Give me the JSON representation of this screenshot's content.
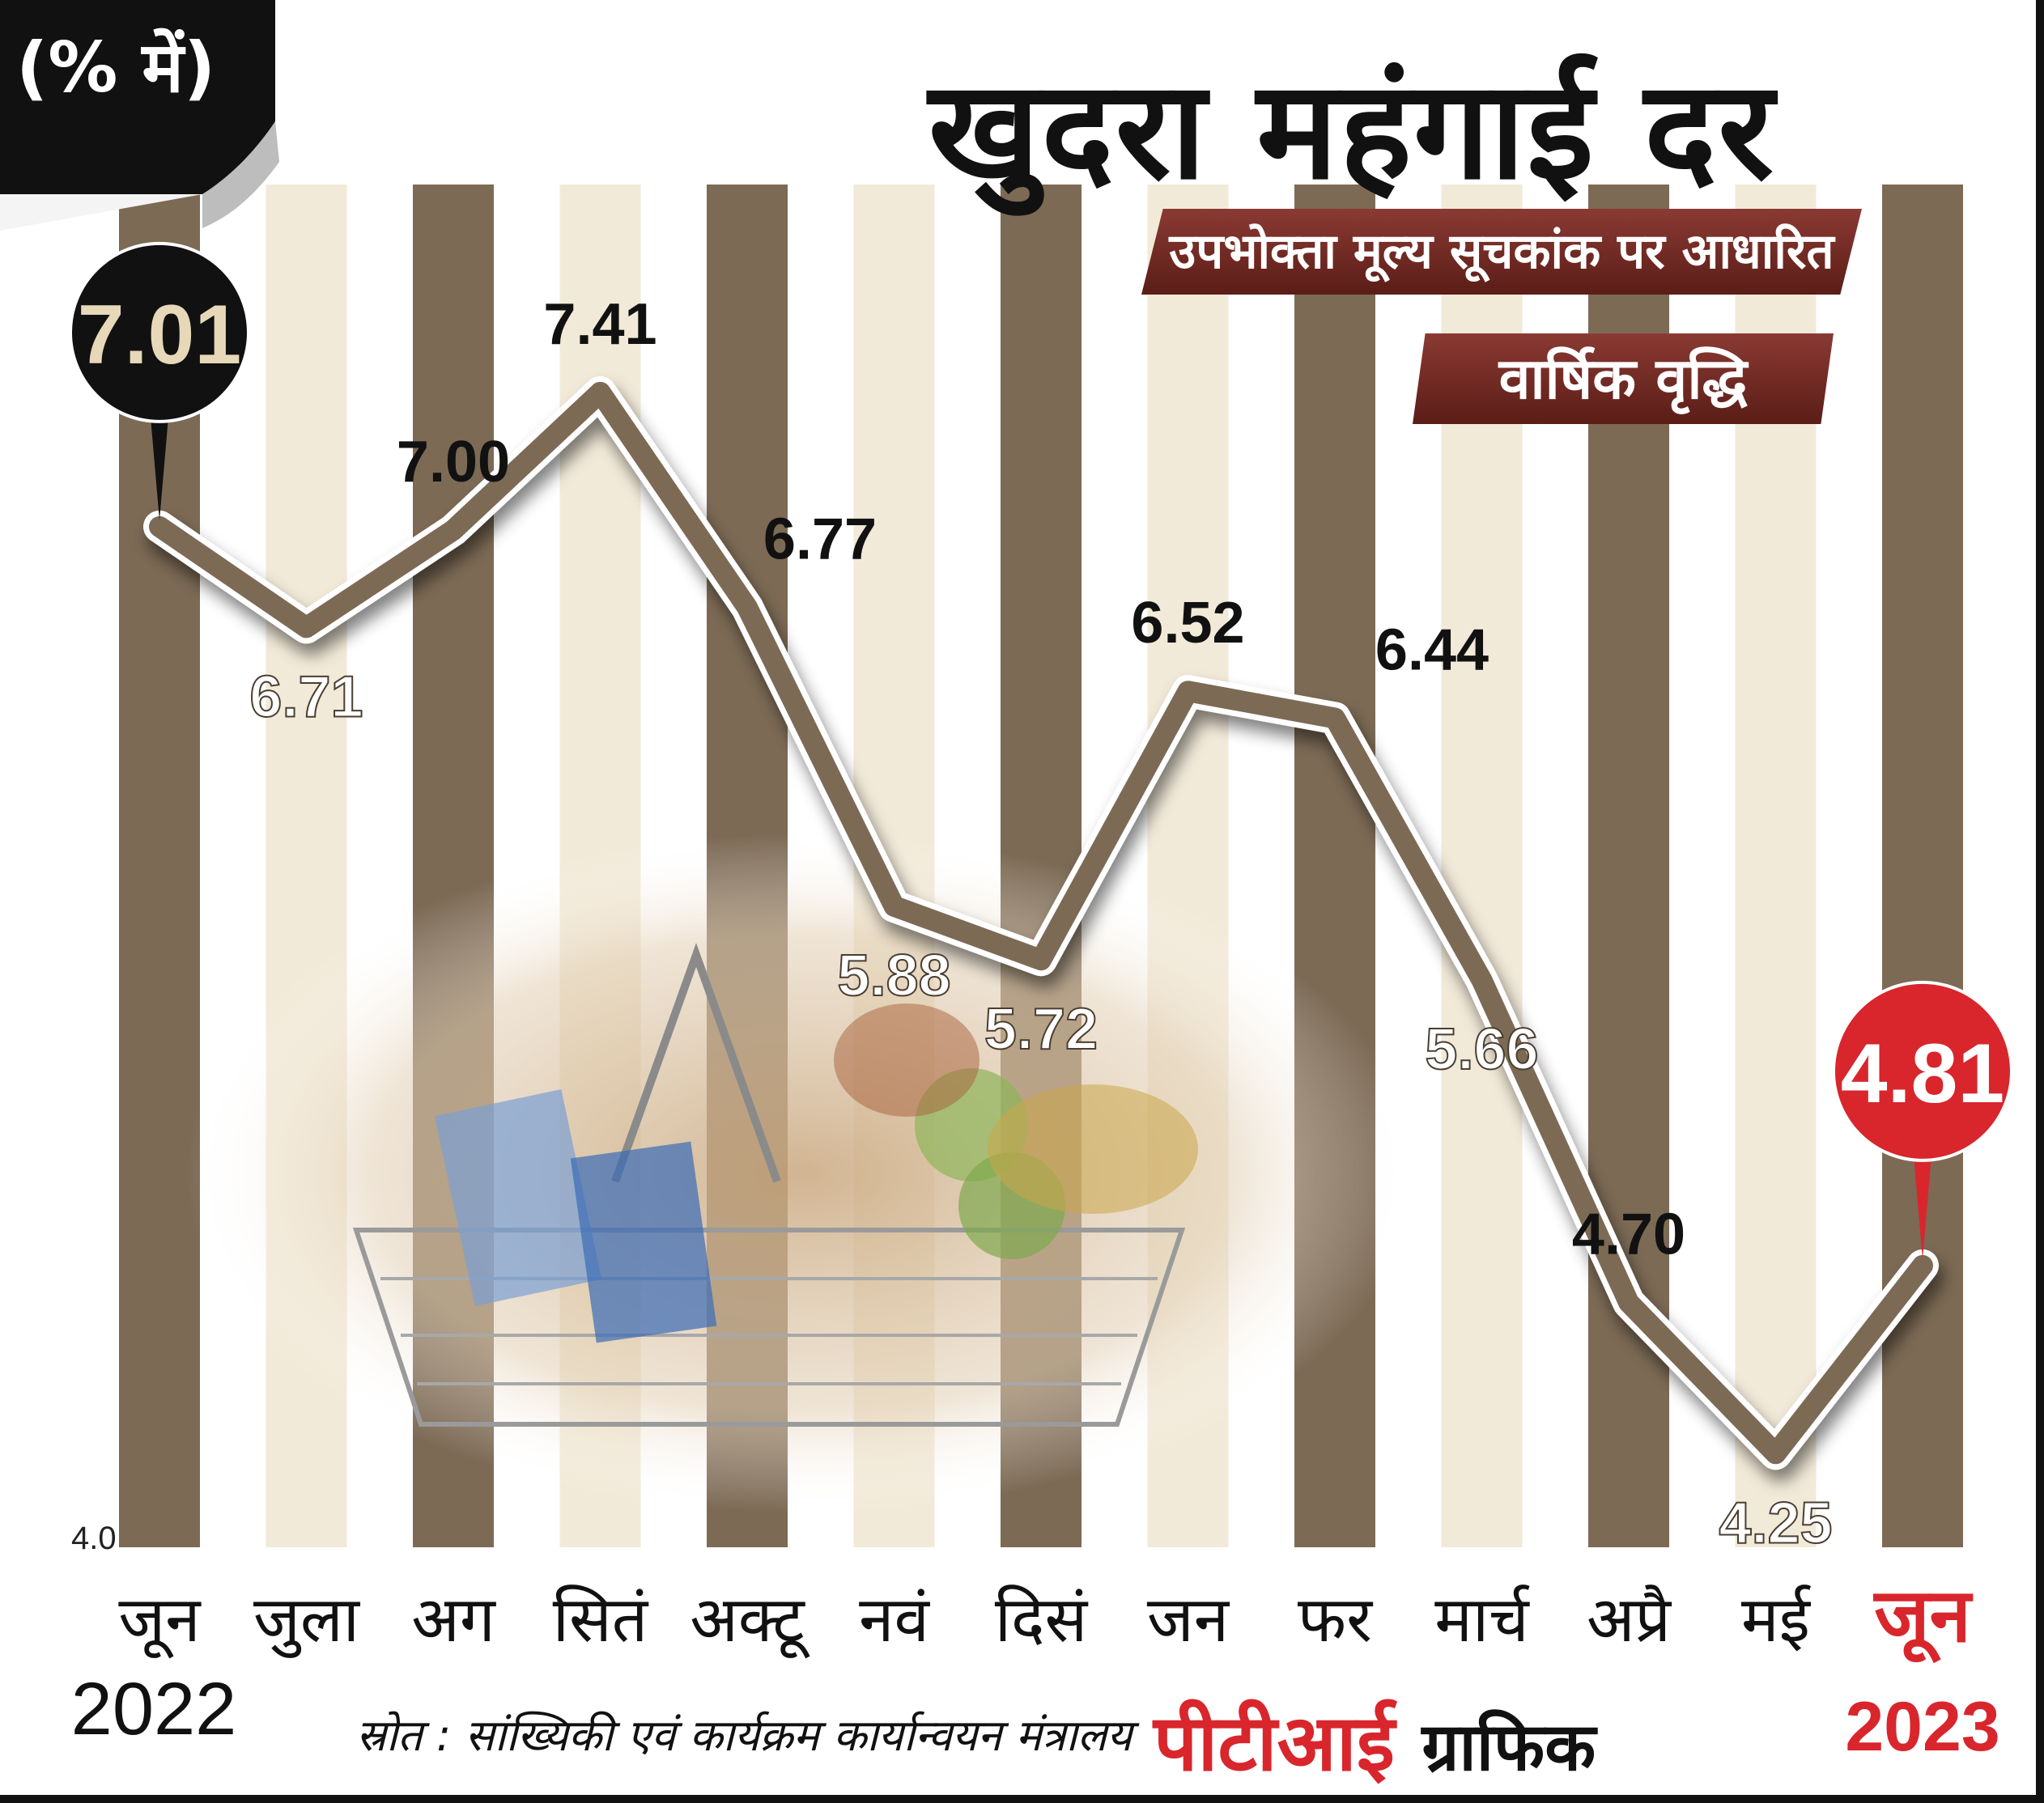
{
  "header": {
    "unit": "(% में)",
    "title": "खुदरा महंगाई दर",
    "ribbon_index": "उपभोक्ता मूल्य सूचकांक पर आधारित",
    "ribbon_growth": "वार्षिक वृद्धि"
  },
  "chart_data": {
    "type": "line",
    "x": [
      "जून",
      "जुला",
      "अग",
      "सितं",
      "अक्टू",
      "नवं",
      "दिसं",
      "जन",
      "फर",
      "मार्च",
      "अप्रै",
      "मई",
      "जून"
    ],
    "years": {
      "start": "2022",
      "end": "2023"
    },
    "values": [
      7.01,
      6.71,
      7.0,
      7.41,
      6.77,
      5.88,
      5.72,
      6.52,
      6.44,
      5.66,
      4.7,
      4.25,
      4.81
    ],
    "value_labels": [
      "7.01",
      "6.71",
      "7.00",
      "7.41",
      "6.77",
      "5.88",
      "5.72",
      "6.52",
      "6.44",
      "5.66",
      "4.70",
      "4.25",
      "4.81"
    ],
    "ylim": [
      4.0,
      8.0
    ],
    "y_ticks": [
      "8.0",
      "4.0"
    ],
    "highlight": {
      "first_index": 0,
      "last_index": 12
    },
    "colors": {
      "line": "#7b6a55",
      "dark_band": "#7c6a55",
      "light_band": "#f2ead9",
      "highlight_dark": "#111111",
      "highlight_dark_text": "#e6d8b8",
      "highlight_red": "#d8262c"
    }
  },
  "footer": {
    "source": "स्रोत : सांख्यिकी एवं कार्यक्रम  कार्यान्वयन मंत्रालय",
    "credit_red": "पीटीआई",
    "credit_dark": "ग्राफिक"
  },
  "image": {
    "subject": "shopping-basket-photo"
  }
}
